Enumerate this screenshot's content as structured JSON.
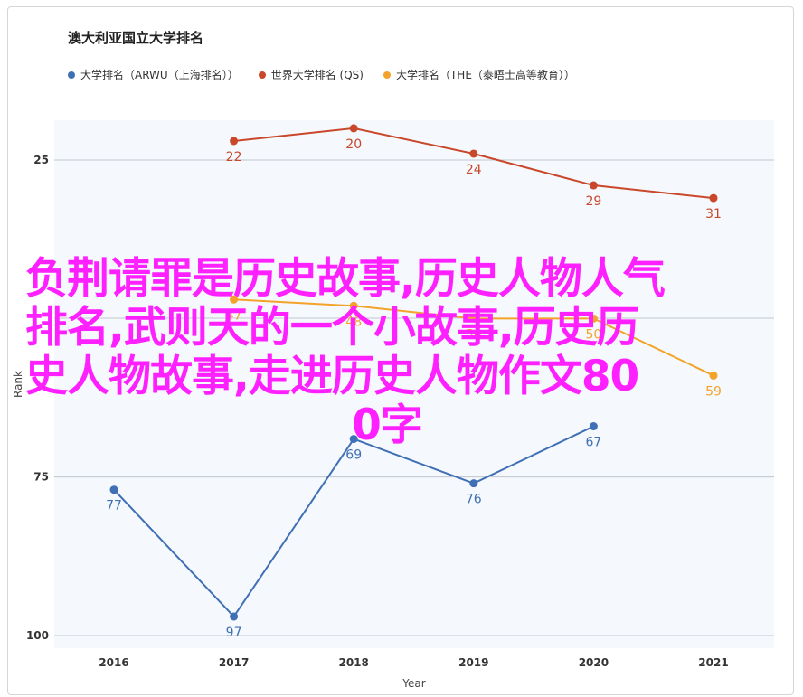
{
  "title": "澳大利亚国立大学排名",
  "legend": [
    {
      "label": "大学排名（ARWU（上海排名））",
      "color": "#3f6fb5"
    },
    {
      "label": "世界大学排名 (QS)",
      "color": "#c9472a"
    },
    {
      "label": "大学排名（THE（泰晤士高等教育））",
      "color": "#f3a32a"
    }
  ],
  "overlay_lines": [
    "负荆请罪是历史故事,历史人物人气",
    "排名,武则天的一个小故事,历史历",
    "史人物故事,走进历史人物作文80",
    "0字"
  ],
  "chart_data": {
    "type": "line",
    "title": "澳大利亚国立大学排名",
    "xlabel": "Year",
    "ylabel": "Rank",
    "categories": [
      "2016",
      "2017",
      "2018",
      "2019",
      "2020",
      "2021"
    ],
    "ylim": [
      100,
      22
    ],
    "y_reversed": true,
    "yticks": [
      25,
      75,
      100
    ],
    "grid": true,
    "legend_position": "top",
    "series": [
      {
        "name": "大学排名（ARWU（上海排名））",
        "color": "#3f6fb5",
        "values": [
          77,
          97,
          69,
          76,
          67,
          null
        ]
      },
      {
        "name": "世界大学排名 (QS)",
        "color": "#c9472a",
        "values": [
          null,
          22,
          20,
          24,
          29,
          31
        ]
      },
      {
        "name": "大学排名（THE（泰晤士高等教育））",
        "color": "#f3a32a",
        "values": [
          null,
          47,
          48,
          50,
          50,
          59
        ]
      }
    ]
  }
}
